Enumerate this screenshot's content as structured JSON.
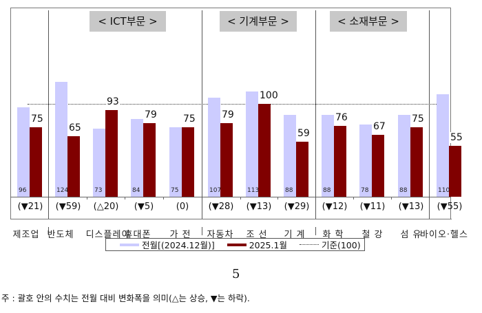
{
  "chart_data": {
    "type": "bar",
    "title": "",
    "xlabel": "",
    "ylabel": "",
    "ylim": [
      0,
      130
    ],
    "grid": false,
    "legend_position": "bottom",
    "reference_line": {
      "label": "기준(100)",
      "value": 100
    },
    "sections": [
      {
        "label": "",
        "categories": [
          "제조업"
        ]
      },
      {
        "label": "< ICT부문 >",
        "categories": [
          "반도체",
          "디스플레이",
          "휴대폰",
          "가 전"
        ]
      },
      {
        "label": "< 기계부문 >",
        "categories": [
          "자동차",
          "조 선",
          "기 계"
        ]
      },
      {
        "label": "< 소재부문 >",
        "categories": [
          "화 학",
          "철 강",
          "섬 유"
        ]
      },
      {
        "label": "",
        "categories": [
          "바이오헬스"
        ]
      }
    ],
    "categories": [
      "제조업",
      "반도체",
      "디스플레이",
      "휴대폰",
      "가 전",
      "자동차",
      "조 선",
      "기 계",
      "화 학",
      "철 강",
      "섬 유",
      "바이오·헬스"
    ],
    "series": [
      {
        "name": "전월[(2024.12월)]",
        "color": "#ccccff",
        "values": [
          96,
          124,
          73,
          84,
          75,
          107,
          113,
          88,
          88,
          78,
          88,
          110
        ]
      },
      {
        "name": "2025.1월",
        "color": "#800000",
        "values": [
          75,
          65,
          93,
          79,
          75,
          79,
          100,
          59,
          76,
          67,
          75,
          55
        ]
      }
    ],
    "changes": [
      "(▼21)",
      "(▼59)",
      "(△20)",
      "(▼5)",
      "(0)",
      "(▼28)",
      "(▼13)",
      "(▼29)",
      "(▼12)",
      "(▼11)",
      "(▼13)",
      "(▼55)"
    ]
  },
  "section_titles": [
    "< ICT부문 >",
    "< 기계부문 >",
    "< 소재부문 >"
  ],
  "legend": {
    "prev": "전월[(2024.12월)]",
    "curr": "2025.1월",
    "ref": "기준(100)"
  },
  "page_number": "5",
  "note": "주 : 괄호 안의 수치는 전월 대비 변화폭을 의미(△는 상승, ▼는 하락)."
}
